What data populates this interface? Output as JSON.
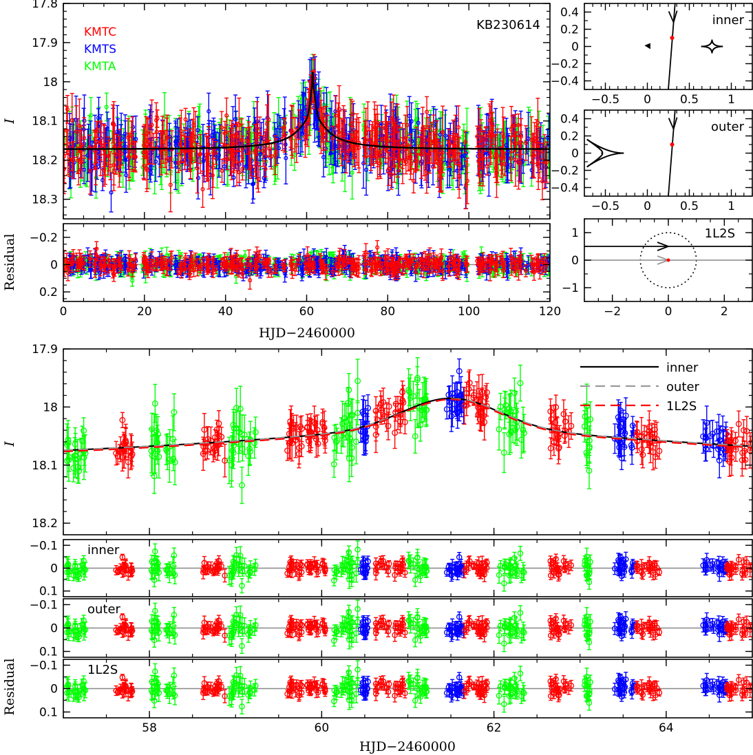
{
  "colors": {
    "kmtc": "#ff0000",
    "kmts": "#0000ff",
    "kmta": "#00ff00",
    "model_inner": "#000000",
    "model_outer": "#999999",
    "model_1l2s": "#ff0000",
    "residual_zero": "#888888"
  },
  "chart_data": [
    {
      "id": "top_lc",
      "type": "scatter",
      "title": "",
      "event_label": "KB230614",
      "xlabel": "",
      "ylabel": "I",
      "xlim": [
        0,
        120
      ],
      "ylim": [
        18.35,
        17.8
      ],
      "xticks": [
        0,
        20,
        40,
        60,
        80,
        100,
        120
      ],
      "yticks": [
        17.8,
        17.9,
        18,
        18.1,
        18.2,
        18.3
      ],
      "legend": [
        "KMTC",
        "KMTS",
        "KMTA"
      ],
      "model": {
        "baseline": 18.172,
        "peak_time": 61.5,
        "peak_mag": 18.01,
        "tE": 22
      }
    },
    {
      "id": "top_res",
      "type": "scatter",
      "xlabel": "HJD−2460000",
      "ylabel": "Residual",
      "xlim": [
        0,
        120
      ],
      "ylim": [
        0.27,
        -0.3
      ],
      "xticks": [
        0,
        20,
        40,
        60,
        80,
        100,
        120
      ],
      "yticks": [
        0.2,
        0,
        -0.2
      ]
    },
    {
      "id": "caustic_inner",
      "type": "line",
      "label": "inner",
      "xlim": [
        -0.75,
        1.25
      ],
      "ylim": [
        -0.5,
        0.5
      ],
      "xticks": [
        -0.5,
        0,
        0.5,
        1
      ],
      "yticks": [
        0.4,
        0.2,
        0,
        -0.2,
        -0.4
      ],
      "trajectory": {
        "x0": 0.25,
        "y0": -0.5,
        "x1": 0.33,
        "y1": 0.5
      }
    },
    {
      "id": "caustic_outer",
      "type": "line",
      "label": "outer",
      "xlim": [
        -0.75,
        1.25
      ],
      "ylim": [
        -0.5,
        0.5
      ],
      "xticks": [
        -0.5,
        0,
        0.5,
        1
      ],
      "yticks": [
        0.4,
        0.2,
        0,
        -0.2,
        -0.4
      ],
      "trajectory": {
        "x0": 0.25,
        "y0": -0.5,
        "x1": 0.33,
        "y1": 0.5
      }
    },
    {
      "id": "geometry_1l2s",
      "type": "line",
      "label": "1L2S",
      "xlim": [
        -3,
        3
      ],
      "ylim": [
        -1.5,
        1.5
      ],
      "xticks": [
        -2,
        0,
        2
      ],
      "yticks": [
        1,
        0,
        -1
      ],
      "einstein_radius": 1,
      "trajectories": [
        {
          "y": 0.5,
          "color": "#000000"
        },
        {
          "y": 0.0,
          "color": "#999999"
        }
      ]
    },
    {
      "id": "zoom_lc",
      "type": "scatter",
      "ylabel": "I",
      "xlim": [
        57,
        65
      ],
      "ylim": [
        18.22,
        17.9
      ],
      "xticks": [
        58,
        60,
        62,
        64
      ],
      "yticks": [
        17.9,
        18,
        18.1,
        18.2
      ],
      "legend": [
        "inner",
        "outer",
        "1L2S"
      ],
      "model": {
        "baseline": 18.104,
        "peak_time": 61.5,
        "peak_mag": 17.985,
        "tE": 22
      }
    },
    {
      "id": "zoom_res_inner",
      "type": "scatter",
      "label": "inner",
      "xlim": [
        57,
        65
      ],
      "ylim": [
        0.125,
        -0.125
      ],
      "xticks": [
        58,
        60,
        62,
        64
      ],
      "yticks": [
        0.1,
        0,
        -0.1
      ]
    },
    {
      "id": "zoom_res_outer",
      "type": "scatter",
      "label": "outer",
      "xlim": [
        57,
        65
      ],
      "ylim": [
        0.125,
        -0.125
      ],
      "xticks": [
        58,
        60,
        62,
        64
      ],
      "yticks": [
        0.1,
        0,
        -0.1
      ]
    },
    {
      "id": "zoom_res_1l2s",
      "type": "scatter",
      "label": "1L2S",
      "xlabel": "HJD−2460000",
      "ylabel": "Residual",
      "xlim": [
        57,
        65
      ],
      "ylim": [
        0.125,
        -0.125
      ],
      "xticks": [
        58,
        60,
        62,
        64
      ],
      "yticks": [
        0.1,
        0,
        -0.1
      ]
    }
  ]
}
